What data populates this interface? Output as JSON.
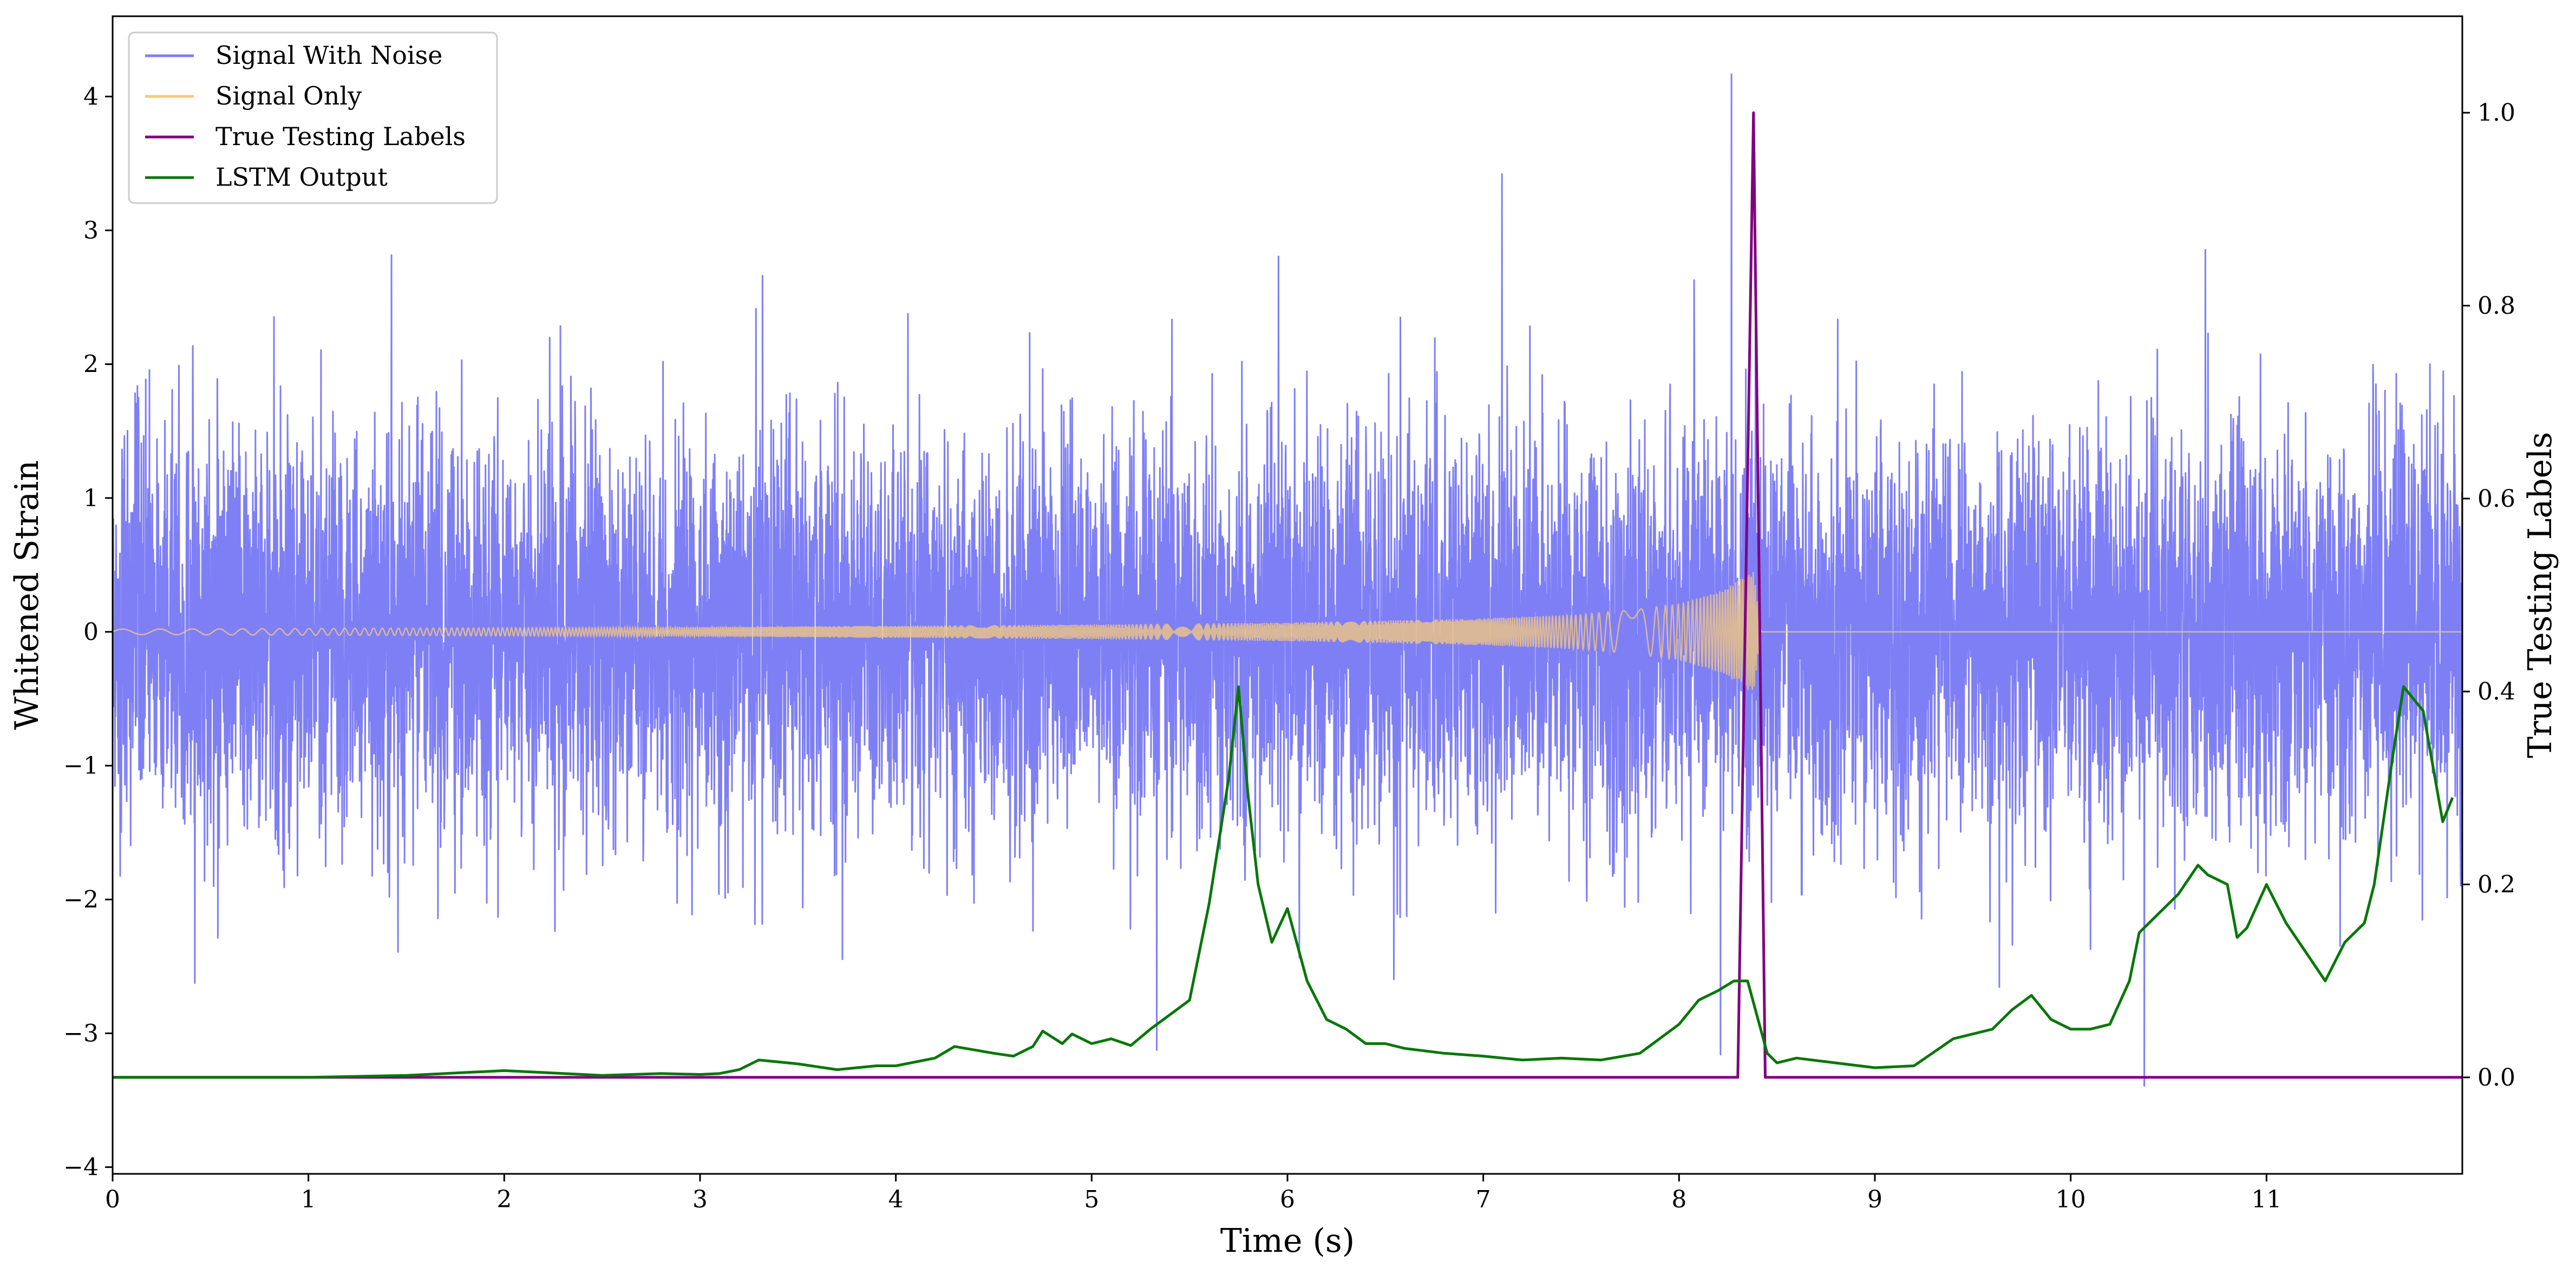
{
  "chart_data": {
    "type": "line",
    "xlabel": "Time (s)",
    "ylabel": "Whitened Strain",
    "y2label": "True Testing Labels",
    "xlim": [
      0,
      12
    ],
    "ylim": [
      -4.05,
      4.6
    ],
    "y2lim": [
      -0.1,
      1.1
    ],
    "x_ticks": [
      0,
      1,
      2,
      3,
      4,
      5,
      6,
      7,
      8,
      9,
      10,
      11
    ],
    "y_ticks": [
      -4,
      -3,
      -2,
      -1,
      0,
      1,
      2,
      3,
      4
    ],
    "y2_ticks": [
      0.0,
      0.2,
      0.4,
      0.6,
      0.8,
      1.0
    ],
    "legend_position": "top-left",
    "colors": {
      "noise": "#7f7ff5",
      "signal": "#f7c97a",
      "labels": "#800080",
      "lstm": "#087708"
    },
    "series": [
      {
        "name": "Signal With Noise",
        "axis": "left",
        "description_stats": {
          "std": 0.75,
          "min": -3.45,
          "max": 4.3,
          "duration_s": 12
        }
      },
      {
        "name": "Signal Only",
        "axis": "left",
        "x": [
          0,
          1,
          2,
          3,
          4,
          5,
          6,
          7,
          7.5,
          7.8,
          8.0,
          8.2,
          8.3,
          8.38,
          8.42,
          12
        ],
        "y_envelope": [
          0.02,
          0.025,
          0.03,
          0.035,
          0.045,
          0.055,
          0.07,
          0.1,
          0.13,
          0.17,
          0.21,
          0.3,
          0.38,
          0.47,
          0,
          0
        ]
      },
      {
        "name": "True Testing Labels",
        "axis": "right",
        "x": [
          0,
          8.3,
          8.38,
          8.44,
          12
        ],
        "y": [
          0,
          0,
          1.0,
          0,
          0
        ]
      },
      {
        "name": "LSTM Output",
        "axis": "right",
        "x": [
          0,
          0.5,
          1.0,
          1.5,
          1.8,
          2.0,
          2.2,
          2.5,
          2.8,
          3.0,
          3.1,
          3.2,
          3.3,
          3.5,
          3.7,
          3.9,
          4.0,
          4.2,
          4.3,
          4.5,
          4.6,
          4.7,
          4.75,
          4.85,
          4.9,
          5.0,
          5.1,
          5.2,
          5.3,
          5.4,
          5.5,
          5.6,
          5.7,
          5.75,
          5.8,
          5.85,
          5.92,
          6.0,
          6.1,
          6.2,
          6.3,
          6.4,
          6.5,
          6.6,
          6.8,
          7.0,
          7.2,
          7.4,
          7.6,
          7.8,
          8.0,
          8.1,
          8.2,
          8.28,
          8.35,
          8.45,
          8.5,
          8.6,
          8.8,
          9.0,
          9.2,
          9.4,
          9.5,
          9.6,
          9.7,
          9.8,
          9.9,
          10.0,
          10.1,
          10.2,
          10.3,
          10.35,
          10.4,
          10.5,
          10.55,
          10.65,
          10.7,
          10.8,
          10.85,
          10.9,
          11.0,
          11.1,
          11.2,
          11.3,
          11.4,
          11.5,
          11.55,
          11.65,
          11.7,
          11.8,
          11.9,
          11.95
        ],
        "y": [
          0.0,
          0.0,
          0.0,
          0.002,
          0.005,
          0.007,
          0.005,
          0.002,
          0.004,
          0.003,
          0.004,
          0.008,
          0.018,
          0.014,
          0.008,
          0.012,
          0.012,
          0.02,
          0.032,
          0.025,
          0.022,
          0.032,
          0.048,
          0.035,
          0.045,
          0.035,
          0.04,
          0.033,
          0.05,
          0.065,
          0.08,
          0.18,
          0.31,
          0.405,
          0.29,
          0.2,
          0.14,
          0.175,
          0.1,
          0.06,
          0.05,
          0.035,
          0.035,
          0.03,
          0.025,
          0.022,
          0.018,
          0.02,
          0.018,
          0.025,
          0.055,
          0.08,
          0.09,
          0.1,
          0.1,
          0.025,
          0.015,
          0.02,
          0.015,
          0.01,
          0.012,
          0.04,
          0.045,
          0.05,
          0.07,
          0.085,
          0.06,
          0.05,
          0.05,
          0.055,
          0.1,
          0.15,
          0.16,
          0.18,
          0.19,
          0.22,
          0.21,
          0.2,
          0.145,
          0.155,
          0.2,
          0.16,
          0.13,
          0.1,
          0.14,
          0.16,
          0.2,
          0.34,
          0.405,
          0.38,
          0.265,
          0.29
        ]
      }
    ]
  }
}
